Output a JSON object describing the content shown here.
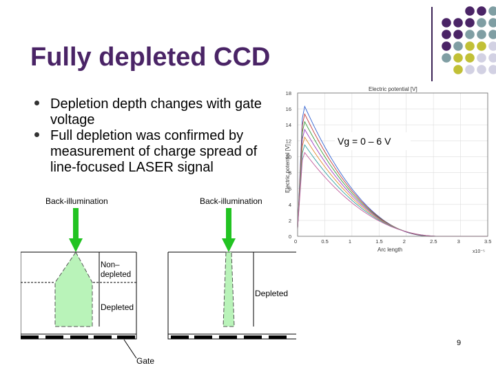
{
  "slide": {
    "title": "Fully depleted CCD",
    "page_number": "9",
    "bullets": [
      {
        "text": "Depletion depth changes with gate voltage"
      },
      {
        "text": "Full depletion was confirmed by measurement of charge spread of line-focused LASER signal"
      }
    ]
  },
  "decor": {
    "colors": {
      "purple": "#4a2466",
      "teal": "#7f9ea3",
      "olive": "#c1c036",
      "lavender": "#d2d1e3"
    }
  },
  "figure": {
    "left_label_top": "Back-illumination",
    "right_label_top": "Back-illumination",
    "non_depleted_label": "Non-\ndepleted",
    "depleted_label": "Depleted",
    "depleted_right_label": "Depleted",
    "gate_label": "Gate"
  },
  "chart_data": {
    "type": "line",
    "title": "Electric potential [V]",
    "xlabel": "Arc length",
    "ylabel": "Electric potential [V]",
    "x_exponent_label": "x10⁻⁵",
    "annotation": "Vg = 0 – 6 V",
    "xlim": [
      0,
      3.5
    ],
    "ylim": [
      0,
      18
    ],
    "x_ticks": [
      "0",
      "0.5",
      "1",
      "1.5",
      "2",
      "2.5",
      "3",
      "3.5"
    ],
    "y_ticks": [
      "0",
      "2",
      "4",
      "6",
      "8",
      "10",
      "12",
      "14",
      "16",
      "18"
    ],
    "series": [
      {
        "color": "#2f5fd0",
        "peak": 16.8
      },
      {
        "color": "#c03a3a",
        "peak": 15.8
      },
      {
        "color": "#3a9a3a",
        "peak": 14.8
      },
      {
        "color": "#9a3ac0",
        "peak": 13.8
      },
      {
        "color": "#e08a30",
        "peak": 12.8
      },
      {
        "color": "#30a0a0",
        "peak": 11.8
      },
      {
        "color": "#c05a9a",
        "peak": 10.8
      }
    ]
  }
}
